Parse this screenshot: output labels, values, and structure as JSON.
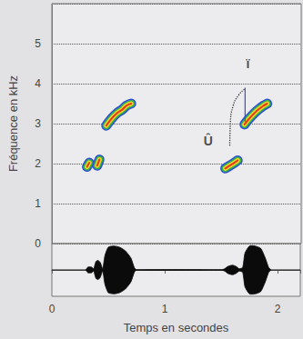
{
  "chart_data": [
    {
      "type": "line",
      "ylabel": "Fréquence en kHz",
      "xlim": [
        0,
        2.2
      ],
      "ylim": [
        0,
        6
      ],
      "yticks": [
        0,
        1,
        2,
        3,
        4,
        5
      ],
      "grid": true,
      "tick_labels": "y",
      "series": [
        {
          "x": [
            0.31,
            0.33
          ],
          "values": [
            1.92,
            2.02
          ]
        },
        {
          "x": [
            0.4,
            0.42
          ],
          "values": [
            1.95,
            2.1
          ]
        },
        {
          "x": [
            0.48,
            0.52,
            0.57,
            0.62,
            0.66,
            0.7
          ],
          "values": [
            2.95,
            3.1,
            3.25,
            3.35,
            3.45,
            3.5
          ]
        },
        {
          "x": [
            1.53,
            1.57,
            1.61,
            1.64
          ],
          "values": [
            1.88,
            1.95,
            2.02,
            2.08
          ]
        },
        {
          "x": [
            1.7,
            1.74,
            1.79,
            1.83,
            1.87,
            1.9
          ],
          "values": [
            2.98,
            3.12,
            3.27,
            3.37,
            3.45,
            3.5
          ]
        },
        {
          "x": [
            1.705,
            1.705
          ],
          "values": [
            3.05,
            3.9
          ],
          "line_style": "thin"
        }
      ],
      "annotations": [
        {
          "text": "Û",
          "x": 1.38,
          "y": 2.57
        },
        {
          "text": "ï",
          "x": 1.73,
          "y": 4.5
        },
        {
          "x": [
            1.57,
            1.575,
            1.6,
            1.65,
            1.7
          ],
          "y": [
            2.45,
            3.0,
            3.45,
            3.72,
            3.86
          ],
          "line_style": "dotted"
        }
      ]
    },
    {
      "type": "area",
      "xlabel": "Temps en secondes",
      "xlim": [
        0,
        2.2
      ],
      "xticks": [
        0,
        1,
        2
      ],
      "ylim": [
        -1.1,
        1.1
      ],
      "tick_labels": "x",
      "x": [
        0.3,
        0.32,
        0.35,
        0.37,
        0.39,
        0.41,
        0.43,
        0.45,
        0.47,
        0.5,
        0.55,
        0.6,
        0.65,
        0.7,
        0.73,
        0.75,
        1.5,
        1.53,
        1.56,
        1.6,
        1.63,
        1.66,
        1.69,
        1.71,
        1.75,
        1.8,
        1.85,
        1.89,
        1.92,
        1.94
      ],
      "values": [
        0,
        0.12,
        0.12,
        0.05,
        0.35,
        0.4,
        0.3,
        0.05,
        0.6,
        0.95,
        1.0,
        0.95,
        0.8,
        0.5,
        0.1,
        0,
        0,
        0.05,
        0.15,
        0.2,
        0.15,
        0.05,
        0.1,
        0.7,
        1.0,
        1.0,
        0.9,
        0.5,
        0.1,
        0
      ]
    }
  ]
}
